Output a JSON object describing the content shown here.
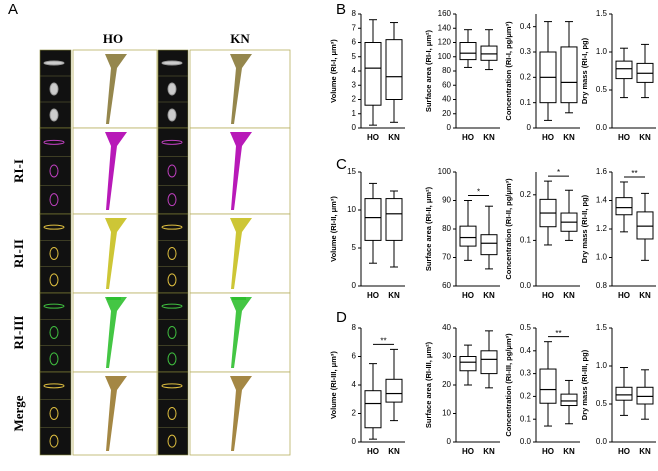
{
  "panel_labels": [
    "A",
    "B",
    "C",
    "D"
  ],
  "panel_a": {
    "columns": [
      "HO",
      "KN"
    ],
    "rows": [
      "RI-I",
      "RI-II",
      "RI-III",
      "Merge"
    ]
  },
  "chart_data": [
    {
      "type": "box",
      "ylabel": "Volume (RI-I, μm³)",
      "categories": [
        "HO",
        "KN"
      ],
      "boxes": [
        {
          "min": 0.2,
          "q1": 1.6,
          "median": 4.2,
          "q3": 6.0,
          "max": 7.6
        },
        {
          "min": 0.4,
          "q1": 2.0,
          "median": 3.6,
          "q3": 6.2,
          "max": 7.4
        }
      ],
      "ylim": [
        0,
        8
      ],
      "yticks": [
        0,
        1,
        2,
        3,
        4,
        5,
        6,
        7,
        8
      ]
    },
    {
      "type": "box",
      "ylabel": "Surface area (RI-I, μm²)",
      "categories": [
        "HO",
        "KN"
      ],
      "boxes": [
        {
          "min": 85,
          "q1": 96,
          "median": 105,
          "q3": 120,
          "max": 138
        },
        {
          "min": 82,
          "q1": 95,
          "median": 104,
          "q3": 115,
          "max": 138
        }
      ],
      "ylim": [
        0,
        160
      ],
      "yticks": [
        0,
        20,
        40,
        60,
        80,
        100,
        120,
        140,
        160
      ]
    },
    {
      "type": "box",
      "ylabel": "Concentration (RI-I, pg/μm³)",
      "categories": [
        "HO",
        "KN"
      ],
      "boxes": [
        {
          "min": 0.03,
          "q1": 0.1,
          "median": 0.2,
          "q3": 0.3,
          "max": 0.42
        },
        {
          "min": 0.06,
          "q1": 0.1,
          "median": 0.18,
          "q3": 0.32,
          "max": 0.42
        }
      ],
      "ylim": [
        0,
        0.45
      ],
      "yticks": [
        0,
        0.1,
        0.2,
        0.3,
        0.4
      ]
    },
    {
      "type": "box",
      "ylabel": "Dry mass (RI-I, pg)",
      "categories": [
        "HO",
        "KN"
      ],
      "boxes": [
        {
          "min": 0.4,
          "q1": 0.65,
          "median": 0.78,
          "q3": 0.88,
          "max": 1.05
        },
        {
          "min": 0.4,
          "q1": 0.6,
          "median": 0.72,
          "q3": 0.85,
          "max": 1.1
        }
      ],
      "ylim": [
        0,
        1.5
      ],
      "yticks": [
        {
          "value": 0,
          "label": "0.0"
        },
        0.5,
        {
          "value": 1,
          "label": "1.0"
        },
        1.5
      ]
    },
    {
      "type": "box",
      "ylabel": "Volume (RI-II, μm³)",
      "categories": [
        "HO",
        "KN"
      ],
      "boxes": [
        {
          "min": 3,
          "q1": 6,
          "median": 9,
          "q3": 11.5,
          "max": 13.5
        },
        {
          "min": 2.5,
          "q1": 6,
          "median": 9.5,
          "q3": 11.5,
          "max": 12.5
        }
      ],
      "ylim": [
        0,
        15
      ],
      "yticks": [
        0,
        5,
        10,
        15
      ]
    },
    {
      "type": "box",
      "ylabel": "Surface area (RI-II, μm²)",
      "categories": [
        "HO",
        "KN"
      ],
      "boxes": [
        {
          "min": 69,
          "q1": 74,
          "median": 77,
          "q3": 81,
          "max": 90
        },
        {
          "min": 66,
          "q1": 71,
          "median": 75,
          "q3": 78,
          "max": 88
        }
      ],
      "ylim": [
        60,
        100
      ],
      "yticks": [
        60,
        70,
        80,
        90,
        100
      ],
      "significance": "*"
    },
    {
      "type": "box",
      "ylabel": "Concentration (RI-II, pg/μm³)",
      "categories": [
        "HO",
        "KN"
      ],
      "boxes": [
        {
          "min": 0.09,
          "q1": 0.13,
          "median": 0.16,
          "q3": 0.19,
          "max": 0.23
        },
        {
          "min": 0.1,
          "q1": 0.12,
          "median": 0.14,
          "q3": 0.16,
          "max": 0.21
        }
      ],
      "ylim": [
        0,
        0.25
      ],
      "yticks": [
        {
          "value": 0,
          "label": "0.0"
        },
        0.1,
        0.2
      ],
      "significance": "*"
    },
    {
      "type": "box",
      "ylabel": "Dry mass (RI-II, pg)",
      "categories": [
        "HO",
        "KN"
      ],
      "boxes": [
        {
          "min": 1.18,
          "q1": 1.3,
          "median": 1.35,
          "q3": 1.42,
          "max": 1.53
        },
        {
          "min": 0.98,
          "q1": 1.13,
          "median": 1.22,
          "q3": 1.32,
          "max": 1.45
        }
      ],
      "ylim": [
        0.8,
        1.6
      ],
      "yticks": [
        0.8,
        {
          "value": 1,
          "label": "1.0"
        },
        1.2,
        1.4,
        1.6
      ],
      "significance": "**"
    },
    {
      "type": "box",
      "ylabel": "Volume (RI-III, μm³)",
      "categories": [
        "HO",
        "KN"
      ],
      "boxes": [
        {
          "min": 0.2,
          "q1": 1.0,
          "median": 2.7,
          "q3": 3.6,
          "max": 5.5
        },
        {
          "min": 1.5,
          "q1": 2.8,
          "median": 3.4,
          "q3": 4.4,
          "max": 6.5
        }
      ],
      "ylim": [
        0,
        8
      ],
      "yticks": [
        0,
        2,
        4,
        6,
        8
      ],
      "significance": "**"
    },
    {
      "type": "box",
      "ylabel": "Surface area (RI-III, μm²)",
      "categories": [
        "HO",
        "KN"
      ],
      "boxes": [
        {
          "min": 20,
          "q1": 25,
          "median": 28,
          "q3": 30,
          "max": 34
        },
        {
          "min": 19,
          "q1": 24,
          "median": 29,
          "q3": 32,
          "max": 39
        }
      ],
      "ylim": [
        0,
        40
      ],
      "yticks": [
        0,
        10,
        20,
        30,
        40
      ]
    },
    {
      "type": "box",
      "ylabel": "Concentration (RI-III, pg/μm³)",
      "categories": [
        "HO",
        "KN"
      ],
      "boxes": [
        {
          "min": 0.07,
          "q1": 0.17,
          "median": 0.23,
          "q3": 0.32,
          "max": 0.44
        },
        {
          "min": 0.08,
          "q1": 0.16,
          "median": 0.18,
          "q3": 0.21,
          "max": 0.27
        }
      ],
      "ylim": [
        0,
        0.5
      ],
      "yticks": [
        {
          "value": 0,
          "label": "0.0"
        },
        0.1,
        0.2,
        0.3,
        0.4,
        0.5
      ],
      "significance": "**"
    },
    {
      "type": "box",
      "ylabel": "Dry mass (RI-III, pg)",
      "categories": [
        "HO",
        "KN"
      ],
      "boxes": [
        {
          "min": 0.35,
          "q1": 0.55,
          "median": 0.62,
          "q3": 0.72,
          "max": 0.98
        },
        {
          "min": 0.3,
          "q1": 0.5,
          "median": 0.6,
          "q3": 0.72,
          "max": 0.95
        }
      ],
      "ylim": [
        0,
        1.5
      ],
      "yticks": [
        {
          "value": 0,
          "label": "0.0"
        },
        0.5,
        {
          "value": 1,
          "label": "1.0"
        },
        1.5
      ]
    }
  ]
}
